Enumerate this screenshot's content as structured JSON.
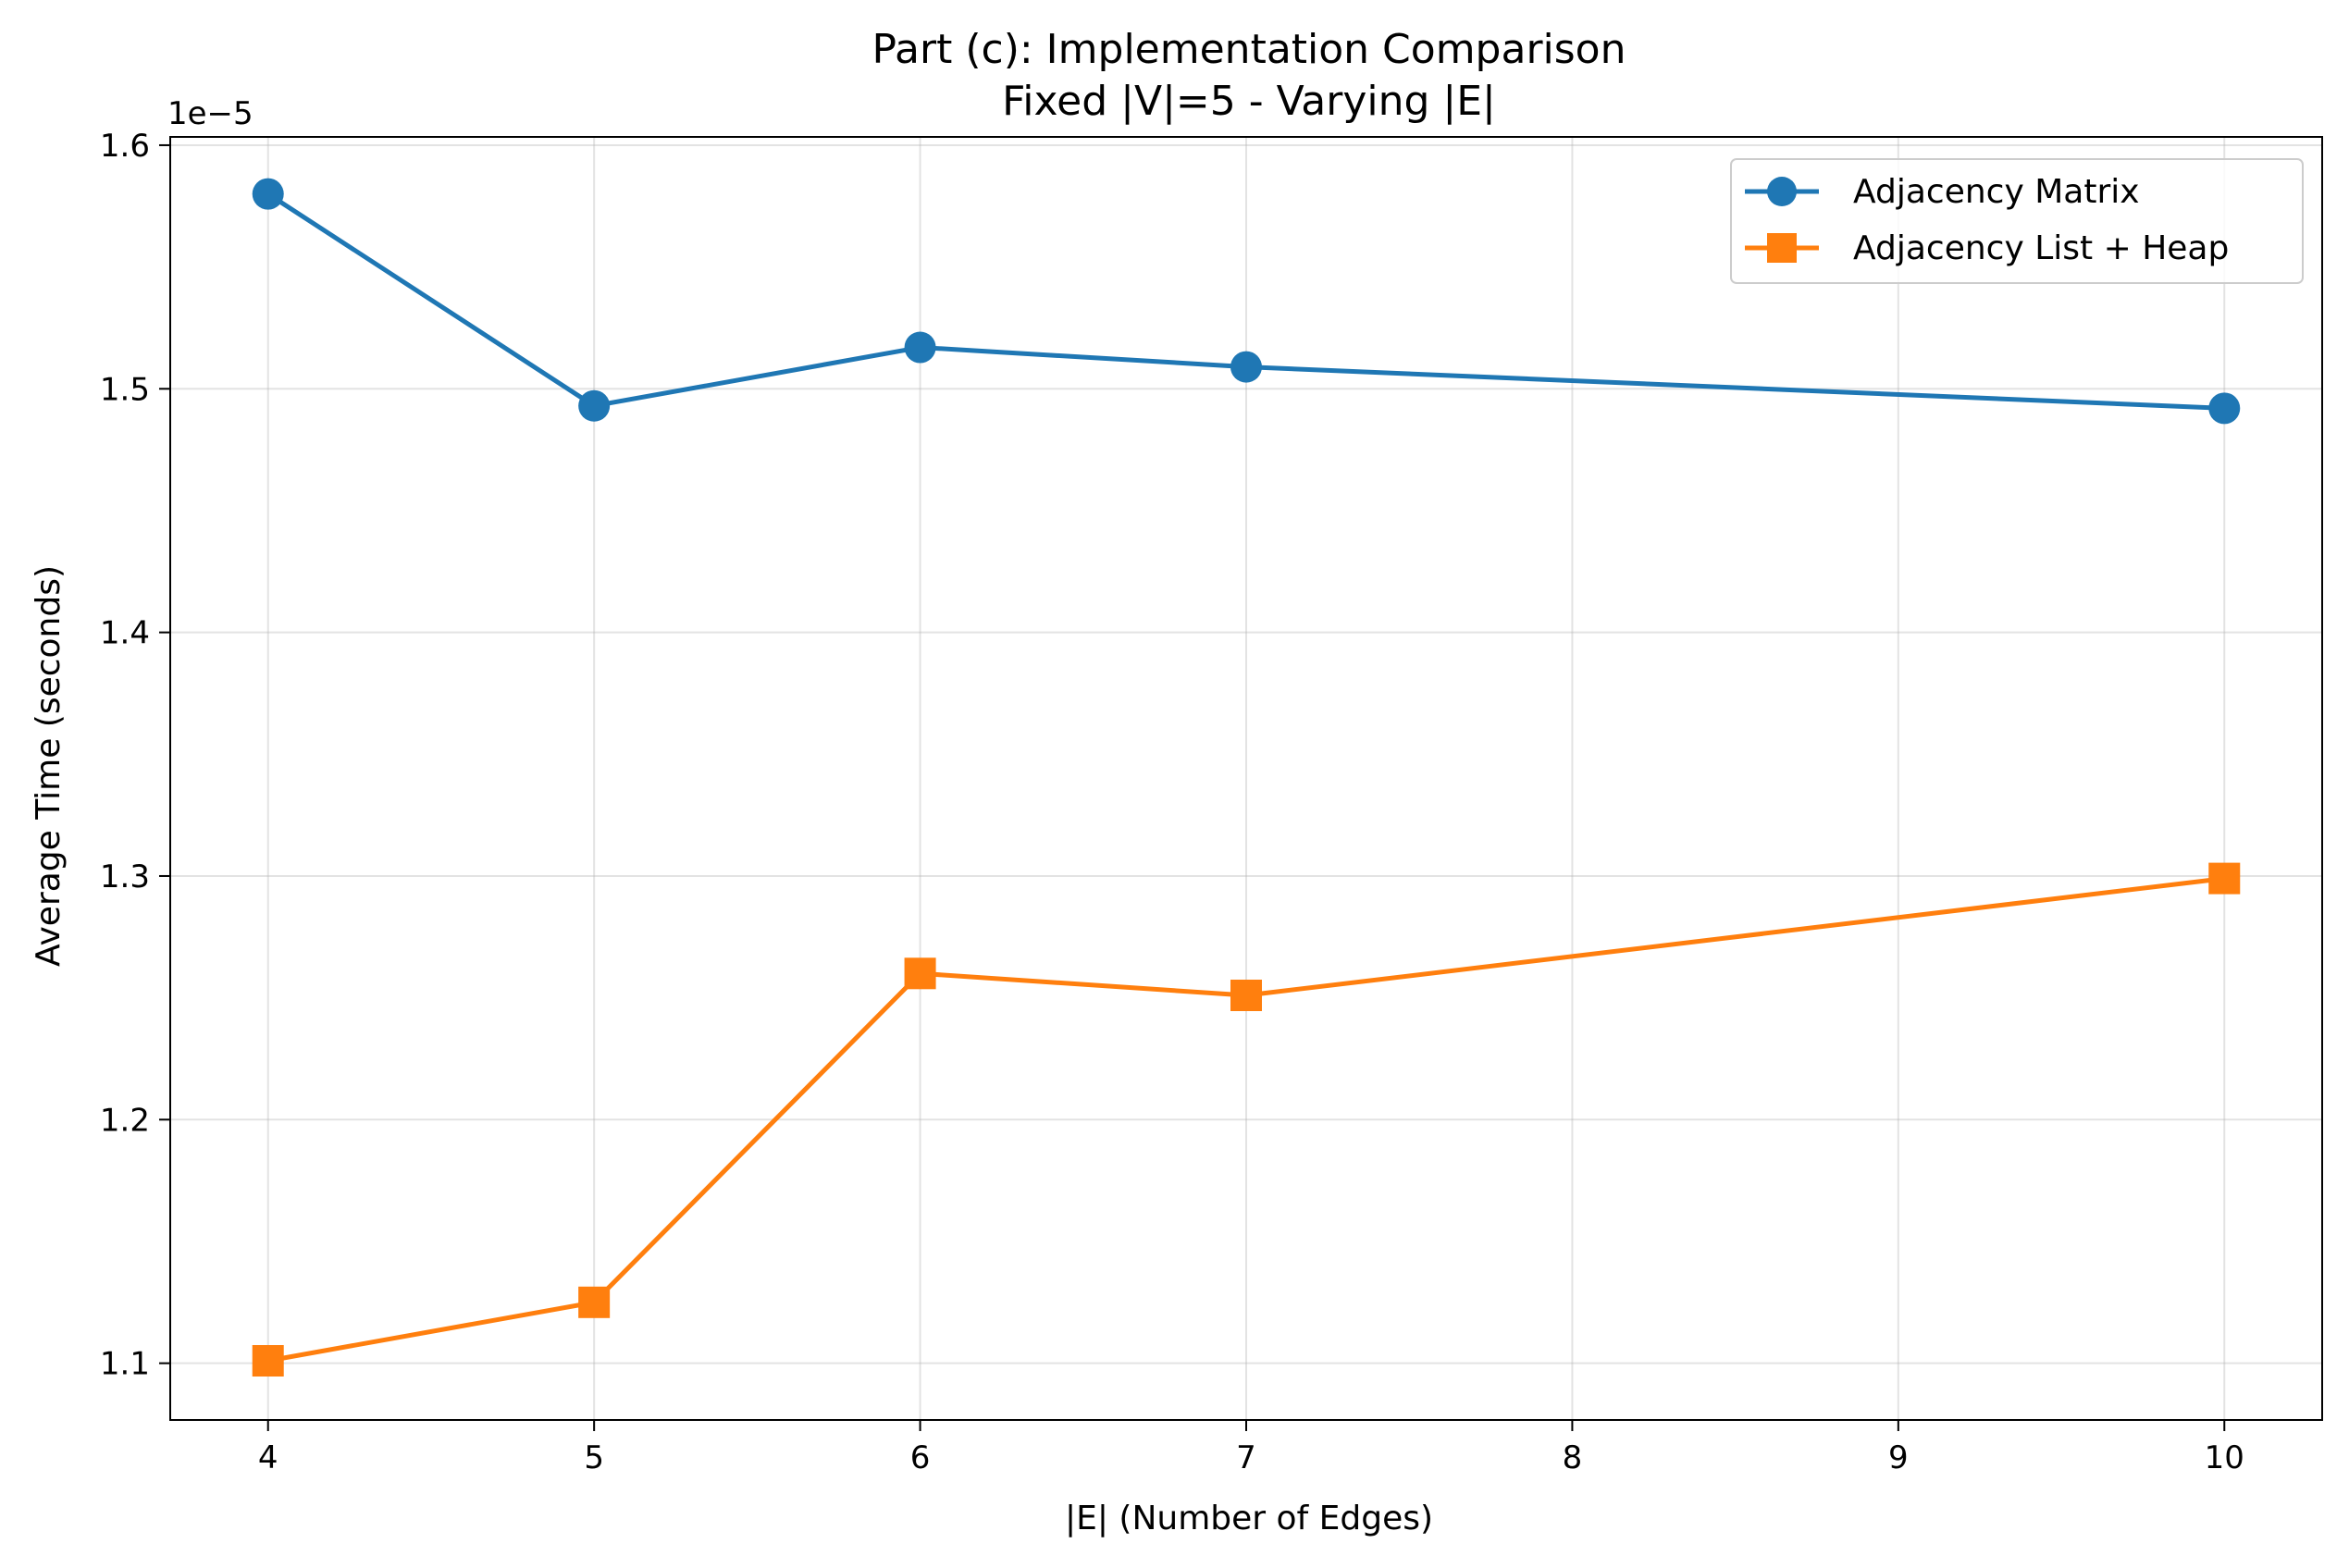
{
  "chart_data": {
    "type": "line",
    "title_line1": "Part (c): Implementation Comparison",
    "title_line2": "Fixed |V|=5 - Varying |E|",
    "xlabel": "|E| (Number of Edges)",
    "ylabel": "Average Time (seconds)",
    "y_offset_text": "1e−5",
    "xlim": [
      3.7,
      10.3
    ],
    "ylim": [
      1.0767,
      1.6034
    ],
    "x_ticks": [
      4,
      5,
      6,
      7,
      8,
      9,
      10
    ],
    "x_tick_labels": [
      "4",
      "5",
      "6",
      "7",
      "8",
      "9",
      "10"
    ],
    "y_ticks": [
      1.1,
      1.2,
      1.3,
      1.4,
      1.5,
      1.6
    ],
    "y_tick_labels": [
      "1.1",
      "1.2",
      "1.3",
      "1.4",
      "1.5",
      "1.6"
    ],
    "grid": true,
    "legend_position": "top-right",
    "x": [
      4,
      5,
      6,
      7,
      10
    ],
    "series": [
      {
        "name": "Adjacency Matrix",
        "marker": "circle",
        "color": "#1f77b4",
        "values": [
          1.58,
          1.493,
          1.517,
          1.509,
          1.492
        ]
      },
      {
        "name": "Adjacency List + Heap",
        "marker": "square",
        "color": "#ff7f0e",
        "values": [
          1.101,
          1.125,
          1.26,
          1.251,
          1.299
        ]
      }
    ]
  }
}
